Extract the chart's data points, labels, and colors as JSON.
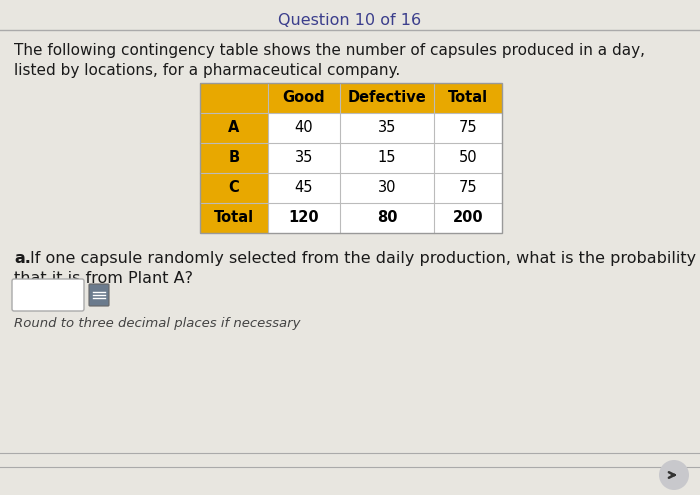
{
  "title": "Question 10 of 16",
  "intro_line1": "The following contingency table shows the number of capsules produced in a day,",
  "intro_line2": "listed by locations, for a pharmaceutical company.",
  "table_headers": [
    "",
    "Good",
    "Defective",
    "Total"
  ],
  "table_rows": [
    [
      "A",
      "40",
      "35",
      "75"
    ],
    [
      "B",
      "35",
      "15",
      "50"
    ],
    [
      "C",
      "45",
      "30",
      "75"
    ],
    [
      "Total",
      "120",
      "80",
      "200"
    ]
  ],
  "question_bold": "a.",
  "question_text": " If one capsule randomly selected from the daily production, what is the probability",
  "question_line2": "that it is from Plant A?",
  "note": "Round to three decimal places if necessary",
  "header_bg_color": "#E8A800",
  "row_label_bg_color": "#E8A800",
  "row_bg_color": "#FFFFFF",
  "bg_color": "#E8E6E0",
  "title_color": "#3B3E8C",
  "text_color": "#1A1A1A",
  "input_box_color": "#FFFFFF",
  "input_box_border": "#AAAAAA",
  "line_color": "#AAAAAA",
  "icon_color": "#555555",
  "arrow_bg": "#C8C8CC",
  "arrow_color": "#333333"
}
